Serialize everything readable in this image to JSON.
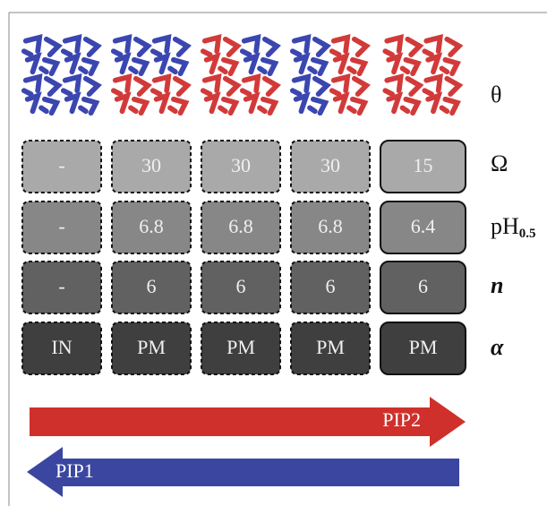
{
  "row_labels": [
    {
      "text": "θ"
    },
    {
      "text": "Ω"
    },
    {
      "text": "pH",
      "sub": "0.5"
    },
    {
      "text": "n"
    },
    {
      "text": "α"
    }
  ],
  "table": {
    "rows": [
      [
        "-",
        "30",
        "30",
        "30",
        "15"
      ],
      [
        "-",
        "6.8",
        "6.8",
        "6.8",
        "6.4"
      ],
      [
        "-",
        "6",
        "6",
        "6",
        "6"
      ],
      [
        "IN",
        "PM",
        "PM",
        "PM",
        "PM"
      ]
    ]
  },
  "arrows": [
    {
      "label": "PIP2"
    },
    {
      "label": "PIP1"
    }
  ]
}
